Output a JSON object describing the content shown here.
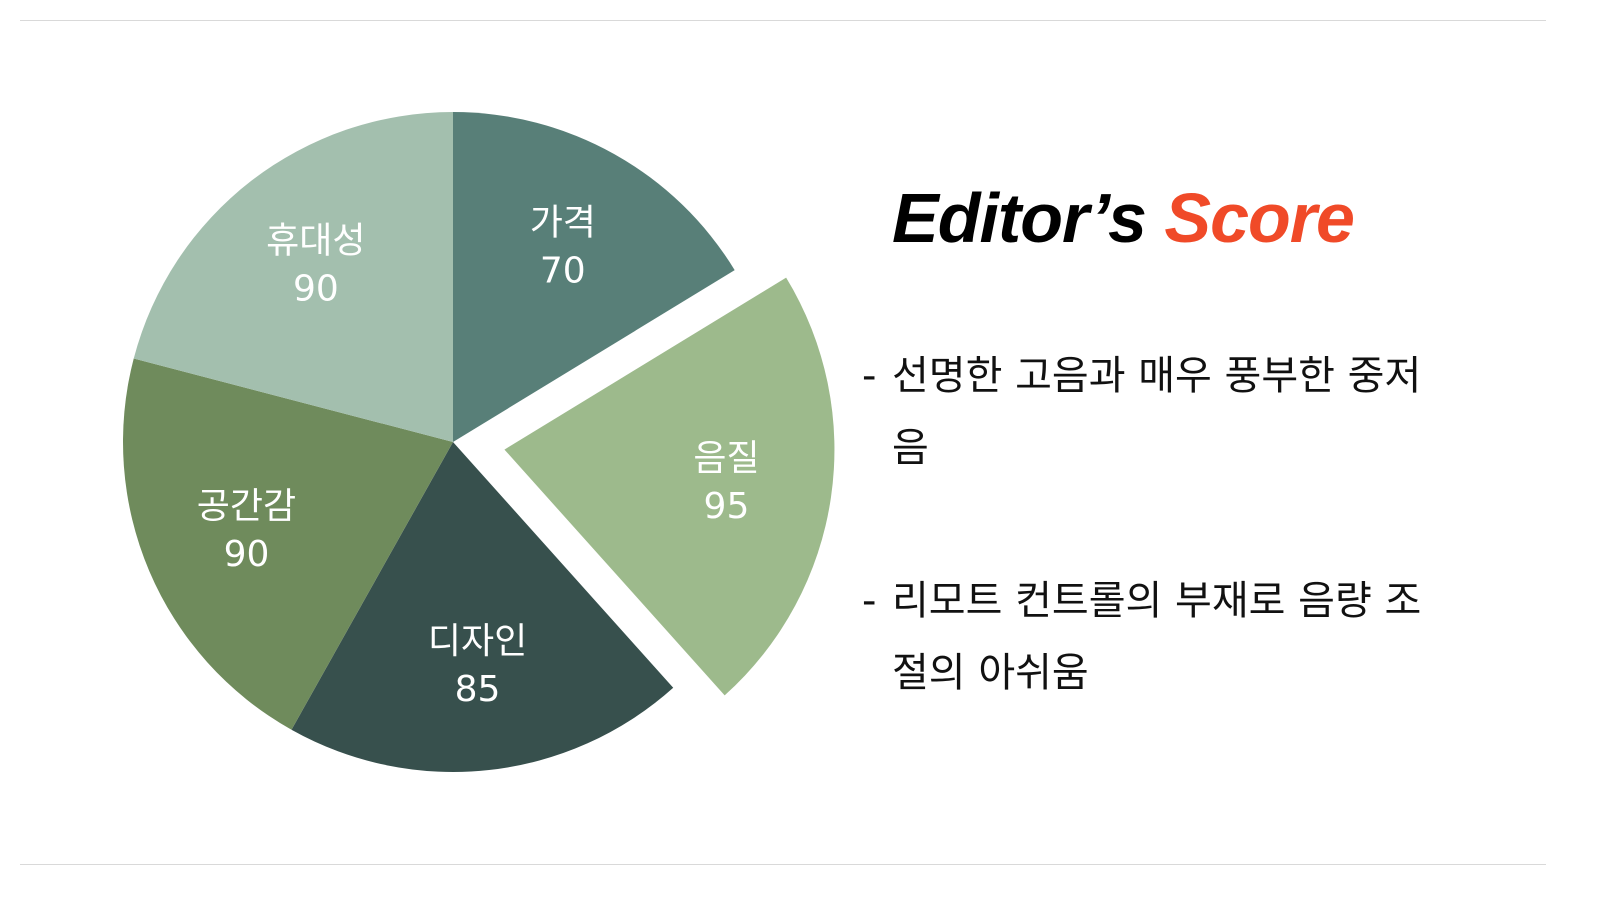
{
  "title": {
    "part1": "Editor’s",
    "part2": "Score"
  },
  "colors": {
    "accent": "#f04a28",
    "rule": "#d9d9d9"
  },
  "notes": [
    {
      "dash": "-",
      "text": "선명한 고음과 매우 풍부한 중저음"
    },
    {
      "dash": "-",
      "text": "리모트 컨트롤의 부재로 음량 조절의 아쉬움"
    }
  ],
  "chart_data": {
    "type": "pie",
    "start": "12 o'clock, clockwise",
    "categories": [
      "가격",
      "음질",
      "디자인",
      "공간감",
      "휴대성"
    ],
    "values": [
      70,
      95,
      85,
      90,
      90
    ],
    "colors": [
      "#587f78",
      "#9dba8c",
      "#37504d",
      "#6f8b5c",
      "#a3bfae"
    ],
    "exploded": [
      "음질"
    ],
    "data_labels": "category and value, inside slices"
  }
}
